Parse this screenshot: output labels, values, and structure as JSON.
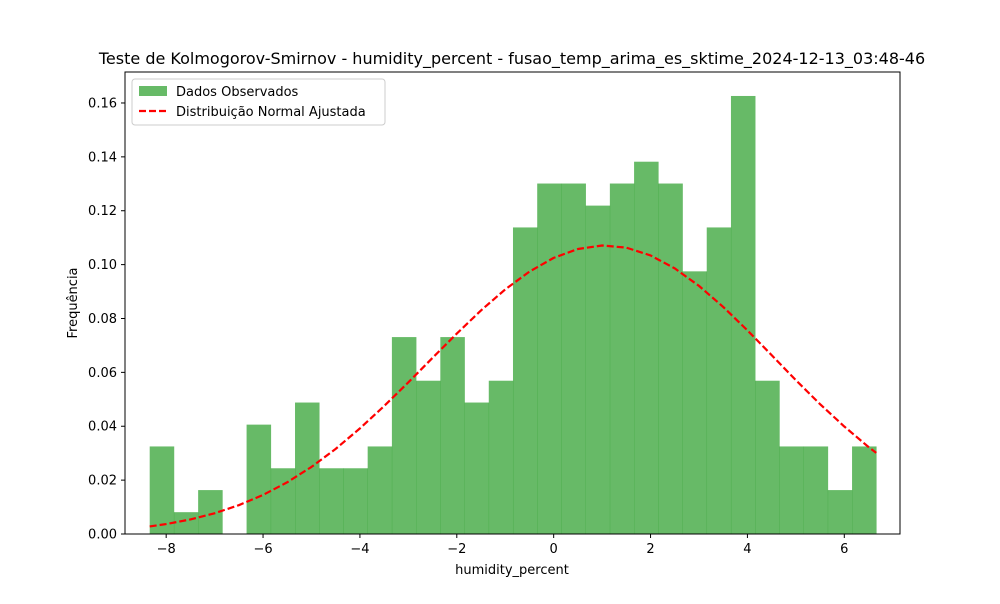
{
  "chart_data": {
    "type": "bar",
    "title": "Teste de Kolmogorov-Smirnov - humidity_percent - fusao_temp_arima_es_sktime_2024-12-13_03:48-46",
    "xlabel": "humidity_percent",
    "ylabel": "Frequência",
    "xlim": [
      -8.85,
      7.15
    ],
    "ylim": [
      0,
      0.1715
    ],
    "xticks": [
      -8,
      -6,
      -4,
      -2,
      0,
      2,
      4,
      6
    ],
    "xtick_labels": [
      "−8",
      "−6",
      "−4",
      "−2",
      "0",
      "2",
      "4",
      "6"
    ],
    "yticks": [
      0.0,
      0.02,
      0.04,
      0.06,
      0.08,
      0.1,
      0.12,
      0.14,
      0.16
    ],
    "ytick_labels": [
      "0.00",
      "0.02",
      "0.04",
      "0.06",
      "0.08",
      "0.10",
      "0.12",
      "0.14",
      "0.16"
    ],
    "grid": false,
    "legend": "upper left",
    "colors": {
      "bars": "#2ca02c",
      "curve": "#ff0000"
    },
    "histogram": {
      "name": "Dados Observados",
      "bin_edges": [
        -8.34,
        -7.84,
        -7.34,
        -6.84,
        -6.34,
        -5.84,
        -5.34,
        -4.84,
        -4.34,
        -3.84,
        -3.34,
        -2.84,
        -2.34,
        -1.84,
        -1.34,
        -0.84,
        -0.34,
        0.16,
        0.66,
        1.16,
        1.66,
        2.16,
        2.66,
        3.16,
        3.66,
        4.16,
        4.66,
        5.16,
        5.66,
        6.16,
        6.66
      ],
      "values": [
        0.0325,
        0.0081,
        0.0163,
        0.0,
        0.0406,
        0.0244,
        0.0488,
        0.0244,
        0.0244,
        0.0325,
        0.0731,
        0.0569,
        0.0731,
        0.0488,
        0.0569,
        0.1138,
        0.1301,
        0.1301,
        0.1219,
        0.1301,
        0.1382,
        0.1301,
        0.0975,
        0.1138,
        0.1626,
        0.0569,
        0.0325,
        0.0325,
        0.0163,
        0.0325
      ]
    },
    "normal_fit": {
      "name": "Distribuição Normal Ajustada",
      "x": [
        -8.34,
        -8.0,
        -7.5,
        -7.0,
        -6.5,
        -6.0,
        -5.5,
        -5.0,
        -4.5,
        -4.0,
        -3.5,
        -3.0,
        -2.5,
        -2.0,
        -1.5,
        -1.0,
        -0.5,
        0.0,
        0.5,
        1.0,
        1.5,
        2.0,
        2.5,
        3.0,
        3.5,
        4.0,
        4.5,
        5.0,
        5.5,
        6.0,
        6.5,
        6.66
      ],
      "y": [
        0.0028,
        0.0037,
        0.0054,
        0.0077,
        0.0107,
        0.0145,
        0.0192,
        0.0249,
        0.0316,
        0.0392,
        0.0475,
        0.0563,
        0.0654,
        0.0744,
        0.083,
        0.0908,
        0.0974,
        0.1025,
        0.1058,
        0.1071,
        0.1063,
        0.1034,
        0.0986,
        0.0921,
        0.0843,
        0.0756,
        0.0664,
        0.0571,
        0.0482,
        0.0399,
        0.0323,
        0.0301
      ]
    }
  }
}
